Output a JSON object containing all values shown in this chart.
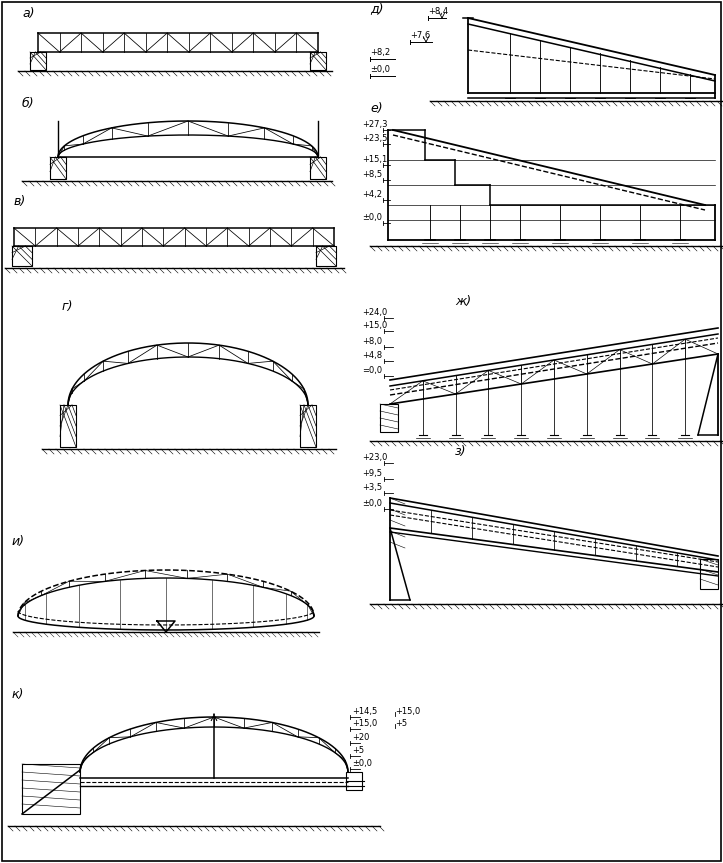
{
  "bg_color": "#ffffff",
  "line_color": "#000000",
  "labels": {
    "a": "а)",
    "b": "б)",
    "v": "в)",
    "g": "г)",
    "d": "д)",
    "e": "е)",
    "zh": "ж)",
    "z": "з)",
    "i": "и)",
    "k": "к)"
  },
  "dim_d": [
    "+8,4",
    "+7,6",
    "+8,2",
    "±0,0"
  ],
  "dim_e": [
    "+27,3",
    "+23,5",
    "+15,1",
    "+8,5",
    "+4,2",
    "±0,0"
  ],
  "dim_zh": [
    "+24,0",
    "+15,0",
    "+8,0",
    "+4,8",
    "=0,0"
  ],
  "dim_z": [
    "+23,0",
    "+9,5",
    "+3,5",
    "±0,0"
  ],
  "dim_k": [
    "+14,5",
    "+15,0",
    "+20",
    "+5",
    "±0,0"
  ]
}
